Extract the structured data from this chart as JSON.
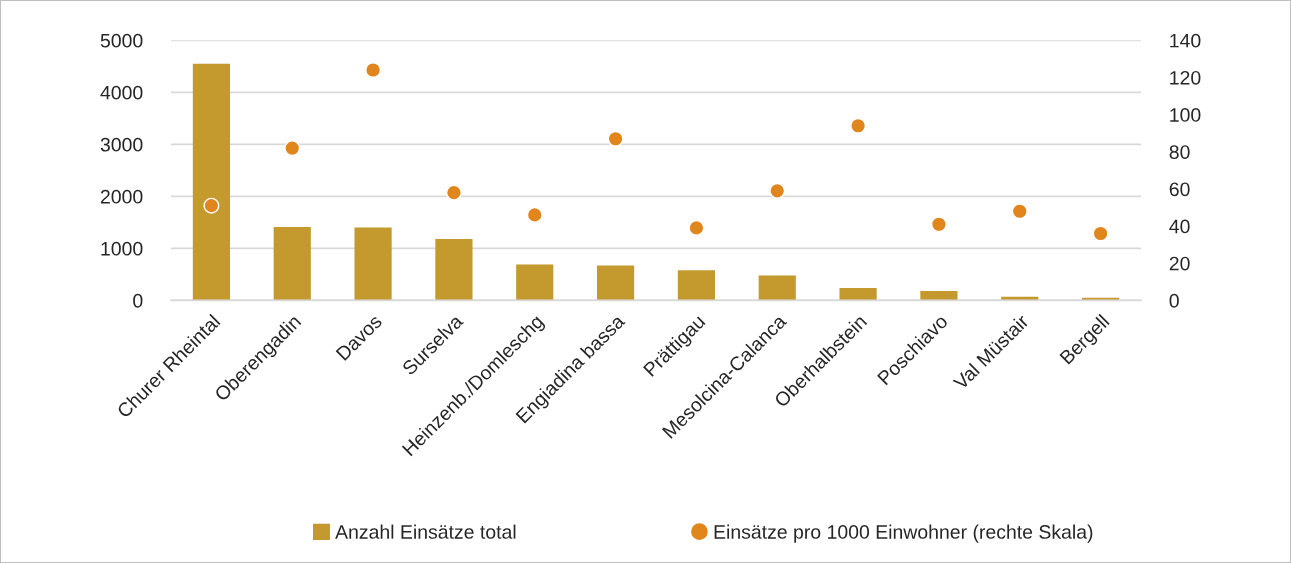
{
  "chart_data": {
    "type": "bar",
    "categories": [
      "Churer Rheintal",
      "Oberengadin",
      "Davos",
      "Surselva",
      "Heinzenb./Domleschg",
      "Engiadina bassa",
      "Prättigau",
      "Mesolcina-Calanca",
      "Oberhalbstein",
      "Poschiavo",
      "Val Müstair",
      "Bergell"
    ],
    "series": [
      {
        "name": "Anzahl Einsätze total",
        "color": "#c4992e",
        "values": [
          4550,
          1410,
          1400,
          1180,
          690,
          670,
          580,
          480,
          240,
          180,
          70,
          50
        ]
      },
      {
        "name": "Einsätze pro 1000 Einwohner (rechte Skala)",
        "type": "scatter",
        "axis": "y2",
        "color": "#e0861c",
        "values": [
          51,
          82,
          124,
          58,
          46,
          87,
          39,
          59,
          94,
          41,
          48,
          36
        ]
      }
    ],
    "ylim": [
      0,
      5000
    ],
    "yticks": [
      0,
      1000,
      2000,
      3000,
      4000,
      5000
    ],
    "y2lim": [
      0,
      140
    ],
    "y2ticks": [
      0,
      20,
      40,
      60,
      80,
      100,
      120,
      140
    ],
    "grid": "y",
    "legend": "bottom",
    "marker": "circle"
  }
}
